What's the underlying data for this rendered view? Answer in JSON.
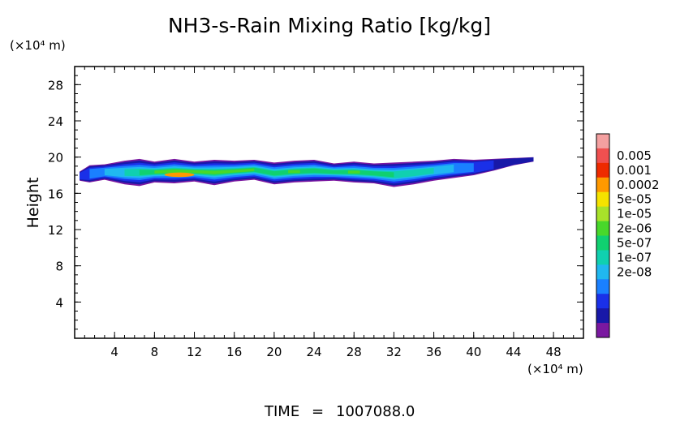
{
  "chart_data": {
    "type": "heatmap",
    "title": "NH3-s-Rain Mixing Ratio [kg/kg]",
    "ylabel": "Height",
    "xlabel": "",
    "x_unit": "(×10⁴ m)",
    "y_unit": "(×10⁴ m)",
    "xlim": [
      0,
      51
    ],
    "ylim": [
      0,
      30
    ],
    "x_ticks": [
      "4",
      "8",
      "12",
      "16",
      "20",
      "24",
      "28",
      "32",
      "36",
      "40",
      "44",
      "48"
    ],
    "y_ticks": [
      "4",
      "8",
      "12",
      "16",
      "20",
      "24",
      "28"
    ],
    "grid": false,
    "colorbar": {
      "labels": [
        "0.005",
        "0.001",
        "0.0002",
        "5e-05",
        "1e-05",
        "2e-06",
        "5e-07",
        "1e-07",
        "2e-08"
      ],
      "colors": [
        "#f4a0a0",
        "#f05050",
        "#ee2a00",
        "#ff9900",
        "#f5e300",
        "#a8e22a",
        "#48d82a",
        "#10d070",
        "#10d0b0",
        "#20b8f0",
        "#1a80ff",
        "#1a30e8",
        "#1818a8",
        "#7a18a0"
      ]
    },
    "cloud_layer": {
      "x_range": [
        0.3,
        51.0
      ],
      "y_range": [
        16.5,
        20.0
      ],
      "peak_value": "0.0002",
      "peak_x": [
        9.0,
        12.0
      ],
      "peak_y": [
        17.8,
        18.3
      ],
      "profile": [
        {
          "x": 0.5,
          "bottom": 17.4,
          "top": 18.4,
          "level": 1
        },
        {
          "x": 1.5,
          "bottom": 17.2,
          "top": 19.1,
          "level": 2
        },
        {
          "x": 3.0,
          "bottom": 17.5,
          "top": 19.2,
          "level": 3
        },
        {
          "x": 5.0,
          "bottom": 17.0,
          "top": 19.6,
          "level": 4
        },
        {
          "x": 6.5,
          "bottom": 16.8,
          "top": 19.8,
          "level": 5
        },
        {
          "x": 8.0,
          "bottom": 17.2,
          "top": 19.5,
          "level": 6
        },
        {
          "x": 10.0,
          "bottom": 17.1,
          "top": 19.8,
          "level": 7
        },
        {
          "x": 12.0,
          "bottom": 17.3,
          "top": 19.5,
          "level": 7
        },
        {
          "x": 14.0,
          "bottom": 16.9,
          "top": 19.7,
          "level": 6
        },
        {
          "x": 16.0,
          "bottom": 17.3,
          "top": 19.6,
          "level": 6
        },
        {
          "x": 18.0,
          "bottom": 17.5,
          "top": 19.7,
          "level": 6
        },
        {
          "x": 20.0,
          "bottom": 17.0,
          "top": 19.4,
          "level": 5
        },
        {
          "x": 22.0,
          "bottom": 17.2,
          "top": 19.6,
          "level": 6
        },
        {
          "x": 24.0,
          "bottom": 17.3,
          "top": 19.7,
          "level": 5
        },
        {
          "x": 26.0,
          "bottom": 17.4,
          "top": 19.3,
          "level": 5
        },
        {
          "x": 28.0,
          "bottom": 17.2,
          "top": 19.5,
          "level": 6
        },
        {
          "x": 30.0,
          "bottom": 17.1,
          "top": 19.3,
          "level": 5
        },
        {
          "x": 32.0,
          "bottom": 16.7,
          "top": 19.4,
          "level": 5
        },
        {
          "x": 34.0,
          "bottom": 17.0,
          "top": 19.5,
          "level": 4
        },
        {
          "x": 36.0,
          "bottom": 17.4,
          "top": 19.6,
          "level": 4
        },
        {
          "x": 38.0,
          "bottom": 17.7,
          "top": 19.8,
          "level": 3
        },
        {
          "x": 40.0,
          "bottom": 18.0,
          "top": 19.7,
          "level": 2
        },
        {
          "x": 42.0,
          "bottom": 18.5,
          "top": 19.8,
          "level": 1
        },
        {
          "x": 44.0,
          "bottom": 19.1,
          "top": 19.9,
          "level": 0
        },
        {
          "x": 46.0,
          "bottom": 19.5,
          "top": 20.0,
          "level": 0
        }
      ]
    }
  },
  "footer": {
    "time_label": "TIME",
    "equals": "=",
    "time_value": "1007088.0"
  }
}
